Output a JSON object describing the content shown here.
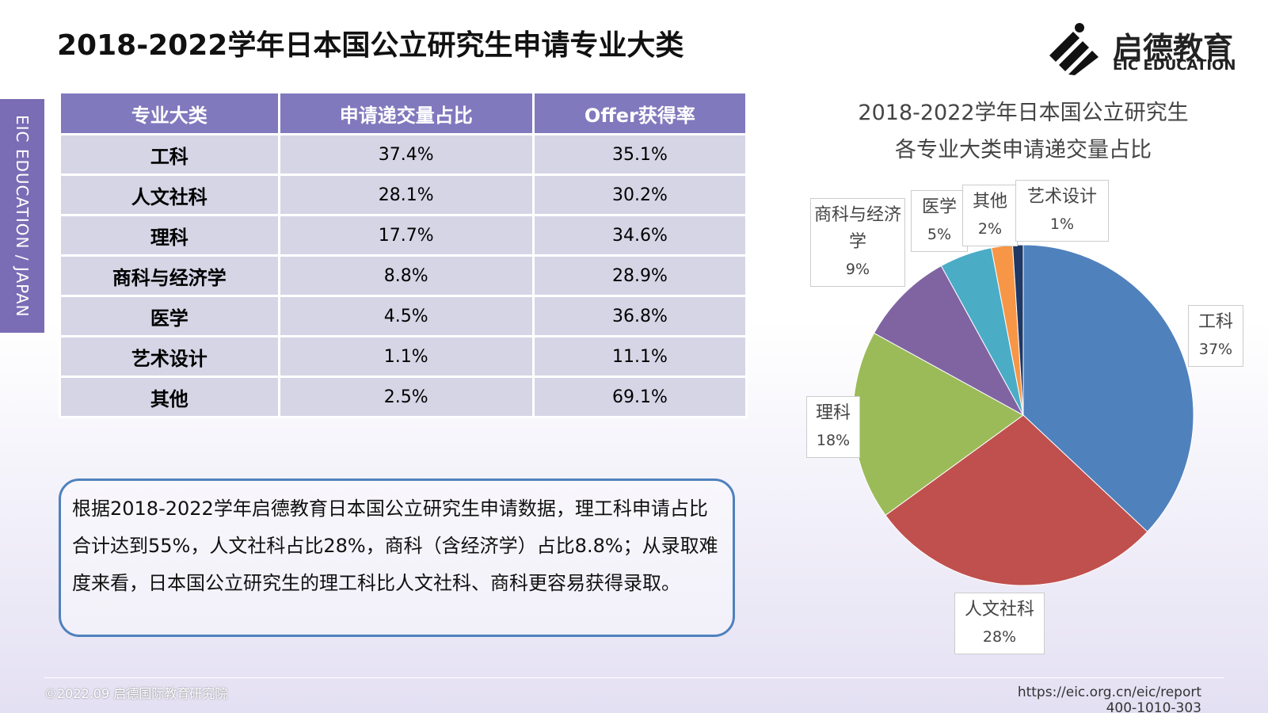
{
  "header": {
    "title": "2018-2022学年日本国公立研究生申请专业大类",
    "side_tab": "EIC EDUCATION / JAPAN",
    "logo_cn": "启德教育",
    "logo_en": "EIC EDUCATION"
  },
  "table": {
    "header": [
      "专业大类",
      "申请递交量占比",
      "Offer获得率"
    ],
    "rows": [
      [
        "工科",
        "37.4%",
        "35.1%"
      ],
      [
        "人文社科",
        "28.1%",
        "30.2%"
      ],
      [
        "理科",
        "17.7%",
        "34.6%"
      ],
      [
        "商科与经济学",
        "8.8%",
        "28.9%"
      ],
      [
        "医学",
        "4.5%",
        "36.8%"
      ],
      [
        "艺术设计",
        "1.1%",
        "11.1%"
      ],
      [
        "其他",
        "2.5%",
        "69.1%"
      ]
    ]
  },
  "summary": "根据2018-2022学年启德教育日本国公立研究生申请数据，理工科申请占比合计达到55%，人文社科占比28%，商科（含经济学）占比8.8%；从录取难度来看，日本国公立研究生的理工科比人文社科、商科更容易获得录取。",
  "chart_data": {
    "type": "pie",
    "title_lines": [
      "2018-2022学年日本国公立研究生",
      "各专业大类申请递交量占比"
    ],
    "categories": [
      "工科",
      "人文社科",
      "理科",
      "商科与经济学",
      "医学",
      "其他",
      "艺术设计"
    ],
    "values": [
      37,
      28,
      18,
      9,
      5,
      2,
      1
    ],
    "value_labels": [
      "37%",
      "28%",
      "18%",
      "9%",
      "5%",
      "2%",
      "1%"
    ],
    "colors": [
      "#4f81bd",
      "#c0504d",
      "#9bbb59",
      "#8064a2",
      "#4bacc6",
      "#f79646",
      "#1f3864"
    ]
  },
  "footer": {
    "left": "©2022.09 启德国际教育研究院",
    "url": "https://eic.org.cn/eic/report",
    "phone": "400-1010-303"
  }
}
